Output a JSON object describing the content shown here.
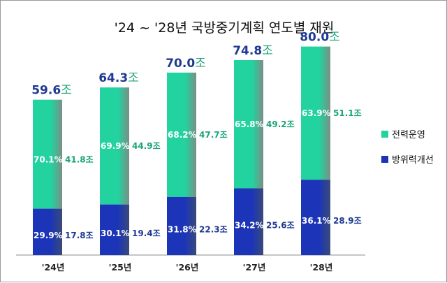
{
  "chart_data": {
    "type": "bar",
    "title": "'24 ~ '28년 국방중기계획 연도별 재원",
    "categories": [
      "'24년",
      "'25년",
      "'26년",
      "'27년",
      "'28년"
    ],
    "totals": [
      "59.6",
      "64.3",
      "70.0",
      "74.8",
      "80.0"
    ],
    "total_values": [
      59.6,
      64.3,
      70.0,
      74.8,
      80.0
    ],
    "unit": "조",
    "stacked": true,
    "series": [
      {
        "name": "방위력개선",
        "color": "#1c35b8",
        "values": [
          17.8,
          19.4,
          22.3,
          25.6,
          28.9
        ],
        "value_labels": [
          "17.8조",
          "19.4조",
          "22.3조",
          "25.6조",
          "28.9조"
        ],
        "pct_labels": [
          "29.9%",
          "30.1%",
          "31.8%",
          "34.2%",
          "36.1%"
        ]
      },
      {
        "name": "전력운영",
        "color": "#22d3a0",
        "values": [
          41.8,
          44.9,
          47.7,
          49.2,
          51.1
        ],
        "value_labels": [
          "41.8조",
          "44.9조",
          "47.7조",
          "49.2조",
          "51.1조"
        ],
        "pct_labels": [
          "70.1%",
          "69.9%",
          "68.2%",
          "65.8%",
          "63.9%"
        ]
      }
    ],
    "legend_position": "right",
    "grid": false,
    "colors": {
      "total_label": "#1f3a93",
      "total_last": "#1f3a93",
      "unit_label": "#1aa37a",
      "lower_value_text": "#1f3a93",
      "upper_value_text": "#1aa37a"
    }
  }
}
